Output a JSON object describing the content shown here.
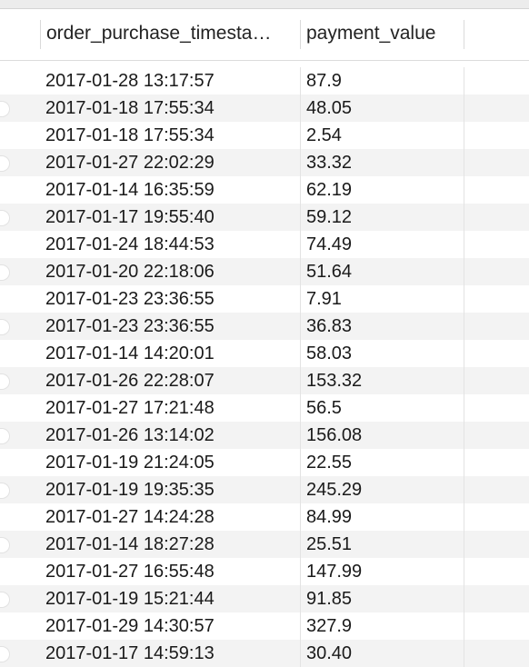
{
  "table": {
    "columns": [
      {
        "label": "order_purchase_timesta…"
      },
      {
        "label": "payment_value"
      }
    ],
    "rows": [
      [
        "2017-01-28 13:17:57",
        "87.9"
      ],
      [
        "2017-01-18 17:55:34",
        "48.05"
      ],
      [
        "2017-01-18 17:55:34",
        "2.54"
      ],
      [
        "2017-01-27 22:02:29",
        "33.32"
      ],
      [
        "2017-01-14 16:35:59",
        "62.19"
      ],
      [
        "2017-01-17 19:55:40",
        "59.12"
      ],
      [
        "2017-01-24 18:44:53",
        "74.49"
      ],
      [
        "2017-01-20 22:18:06",
        "51.64"
      ],
      [
        "2017-01-23 23:36:55",
        "7.91"
      ],
      [
        "2017-01-23 23:36:55",
        "36.83"
      ],
      [
        "2017-01-14 14:20:01",
        "58.03"
      ],
      [
        "2017-01-26 22:28:07",
        "153.32"
      ],
      [
        "2017-01-27 17:21:48",
        "56.5"
      ],
      [
        "2017-01-26 13:14:02",
        "156.08"
      ],
      [
        "2017-01-19 21:24:05",
        "22.55"
      ],
      [
        "2017-01-19 19:35:35",
        "245.29"
      ],
      [
        "2017-01-27 14:24:28",
        "84.99"
      ],
      [
        "2017-01-14 18:27:28",
        "25.51"
      ],
      [
        "2017-01-27 16:55:48",
        "147.99"
      ],
      [
        "2017-01-19 15:21:44",
        "91.85"
      ],
      [
        "2017-01-29 14:30:57",
        "327.9"
      ],
      [
        "2017-01-17 14:59:13",
        "30.40"
      ]
    ]
  },
  "colors": {
    "alt_row": "#f3f3f3",
    "grid_line": "#dadada",
    "header_bg": "#ffffff"
  }
}
